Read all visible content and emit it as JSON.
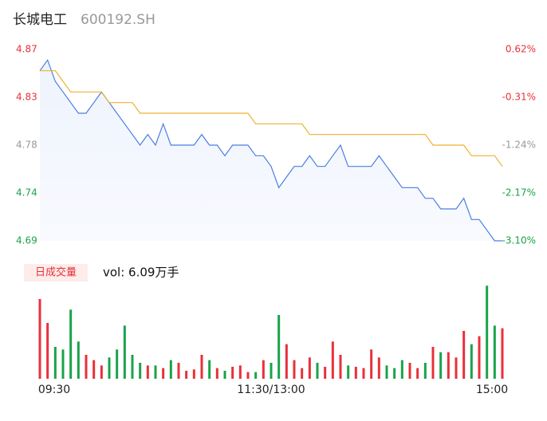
{
  "header": {
    "name": "长城电工",
    "code": "600192.SH"
  },
  "chart_data": {
    "type": "line",
    "x": [
      0,
      4,
      8,
      12,
      16,
      20,
      24,
      28,
      32,
      36,
      40,
      44,
      48,
      52,
      56,
      60,
      64,
      68,
      72,
      76,
      80,
      84,
      88,
      92,
      96,
      100,
      104,
      108,
      112,
      116,
      120,
      124,
      128,
      132,
      136,
      140,
      144,
      148,
      152,
      156,
      160,
      164,
      168,
      172,
      176,
      180,
      184,
      188,
      192,
      196,
      200,
      204,
      208,
      212,
      216,
      220,
      224,
      228,
      232,
      236,
      240
    ],
    "xlim": [
      0,
      240
    ],
    "xticks": [
      {
        "value": 0,
        "label": "09:30"
      },
      {
        "value": 120,
        "label": "11:30/13:00"
      },
      {
        "value": 240,
        "label": "15:00"
      }
    ],
    "ylim": [
      4.69,
      4.87
    ],
    "yticks": [
      4.87,
      {
        "value": 4.825,
        "label": "4.83"
      },
      4.78,
      {
        "value": 4.735,
        "label": "4.74"
      },
      4.69
    ],
    "y2lim": [
      -3.1,
      0.62
    ],
    "y2ticks": [
      {
        "value": 0.62,
        "label": "0.62%"
      },
      {
        "value": -0.31,
        "label": "-0.31%"
      },
      {
        "value": -1.24,
        "label": "-1.24%"
      },
      {
        "value": -2.17,
        "label": "-2.17%"
      },
      {
        "value": -3.1,
        "label": "-3.10%"
      }
    ],
    "tick_colors": [
      "#e8313a",
      "#e8313a",
      "#999999",
      "#1aa34a",
      "#1aa34a"
    ],
    "series": [
      {
        "name": "price",
        "color": "#4a7ee0",
        "values": [
          4.85,
          4.86,
          4.84,
          4.83,
          4.82,
          4.81,
          4.81,
          4.82,
          4.83,
          4.82,
          4.81,
          4.8,
          4.79,
          4.78,
          4.79,
          4.78,
          4.8,
          4.78,
          4.78,
          4.78,
          4.78,
          4.79,
          4.78,
          4.78,
          4.77,
          4.78,
          4.78,
          4.78,
          4.77,
          4.77,
          4.76,
          4.74,
          4.75,
          4.76,
          4.76,
          4.77,
          4.76,
          4.76,
          4.77,
          4.78,
          4.76,
          4.76,
          4.76,
          4.76,
          4.77,
          4.76,
          4.75,
          4.74,
          4.74,
          4.74,
          4.73,
          4.73,
          4.72,
          4.72,
          4.72,
          4.73,
          4.71,
          4.71,
          4.7,
          4.69,
          4.69
        ]
      },
      {
        "name": "average",
        "color": "#f0b030",
        "values": [
          4.85,
          4.85,
          4.85,
          4.84,
          4.83,
          4.83,
          4.83,
          4.83,
          4.83,
          4.82,
          4.82,
          4.82,
          4.82,
          4.81,
          4.81,
          4.81,
          4.81,
          4.81,
          4.81,
          4.81,
          4.81,
          4.81,
          4.81,
          4.81,
          4.81,
          4.81,
          4.81,
          4.81,
          4.8,
          4.8,
          4.8,
          4.8,
          4.8,
          4.8,
          4.8,
          4.79,
          4.79,
          4.79,
          4.79,
          4.79,
          4.79,
          4.79,
          4.79,
          4.79,
          4.79,
          4.79,
          4.79,
          4.79,
          4.79,
          4.79,
          4.79,
          4.78,
          4.78,
          4.78,
          4.78,
          4.78,
          4.77,
          4.77,
          4.77,
          4.77,
          4.76
        ]
      },
      {
        "name": "volume",
        "axis": "volume",
        "values": [
          3000,
          2100,
          1200,
          1100,
          2600,
          1400,
          900,
          700,
          500,
          800,
          1100,
          2000,
          900,
          600,
          500,
          500,
          400,
          700,
          600,
          300,
          350,
          900,
          700,
          400,
          300,
          450,
          500,
          250,
          250,
          700,
          600,
          2400,
          1300,
          700,
          400,
          800,
          600,
          450,
          1400,
          900,
          500,
          450,
          400,
          1100,
          800,
          500,
          400,
          700,
          600,
          400,
          600,
          1200,
          1000,
          1000,
          800,
          1800,
          1300,
          1600,
          3500,
          2000,
          1900
        ],
        "up_color": "#e8313a",
        "down_color": "#1aa34a"
      }
    ],
    "volume_ylim": [
      0,
      3000
    ],
    "volume_title": "日成交量",
    "volume_label": "vol: 6.09万手"
  }
}
